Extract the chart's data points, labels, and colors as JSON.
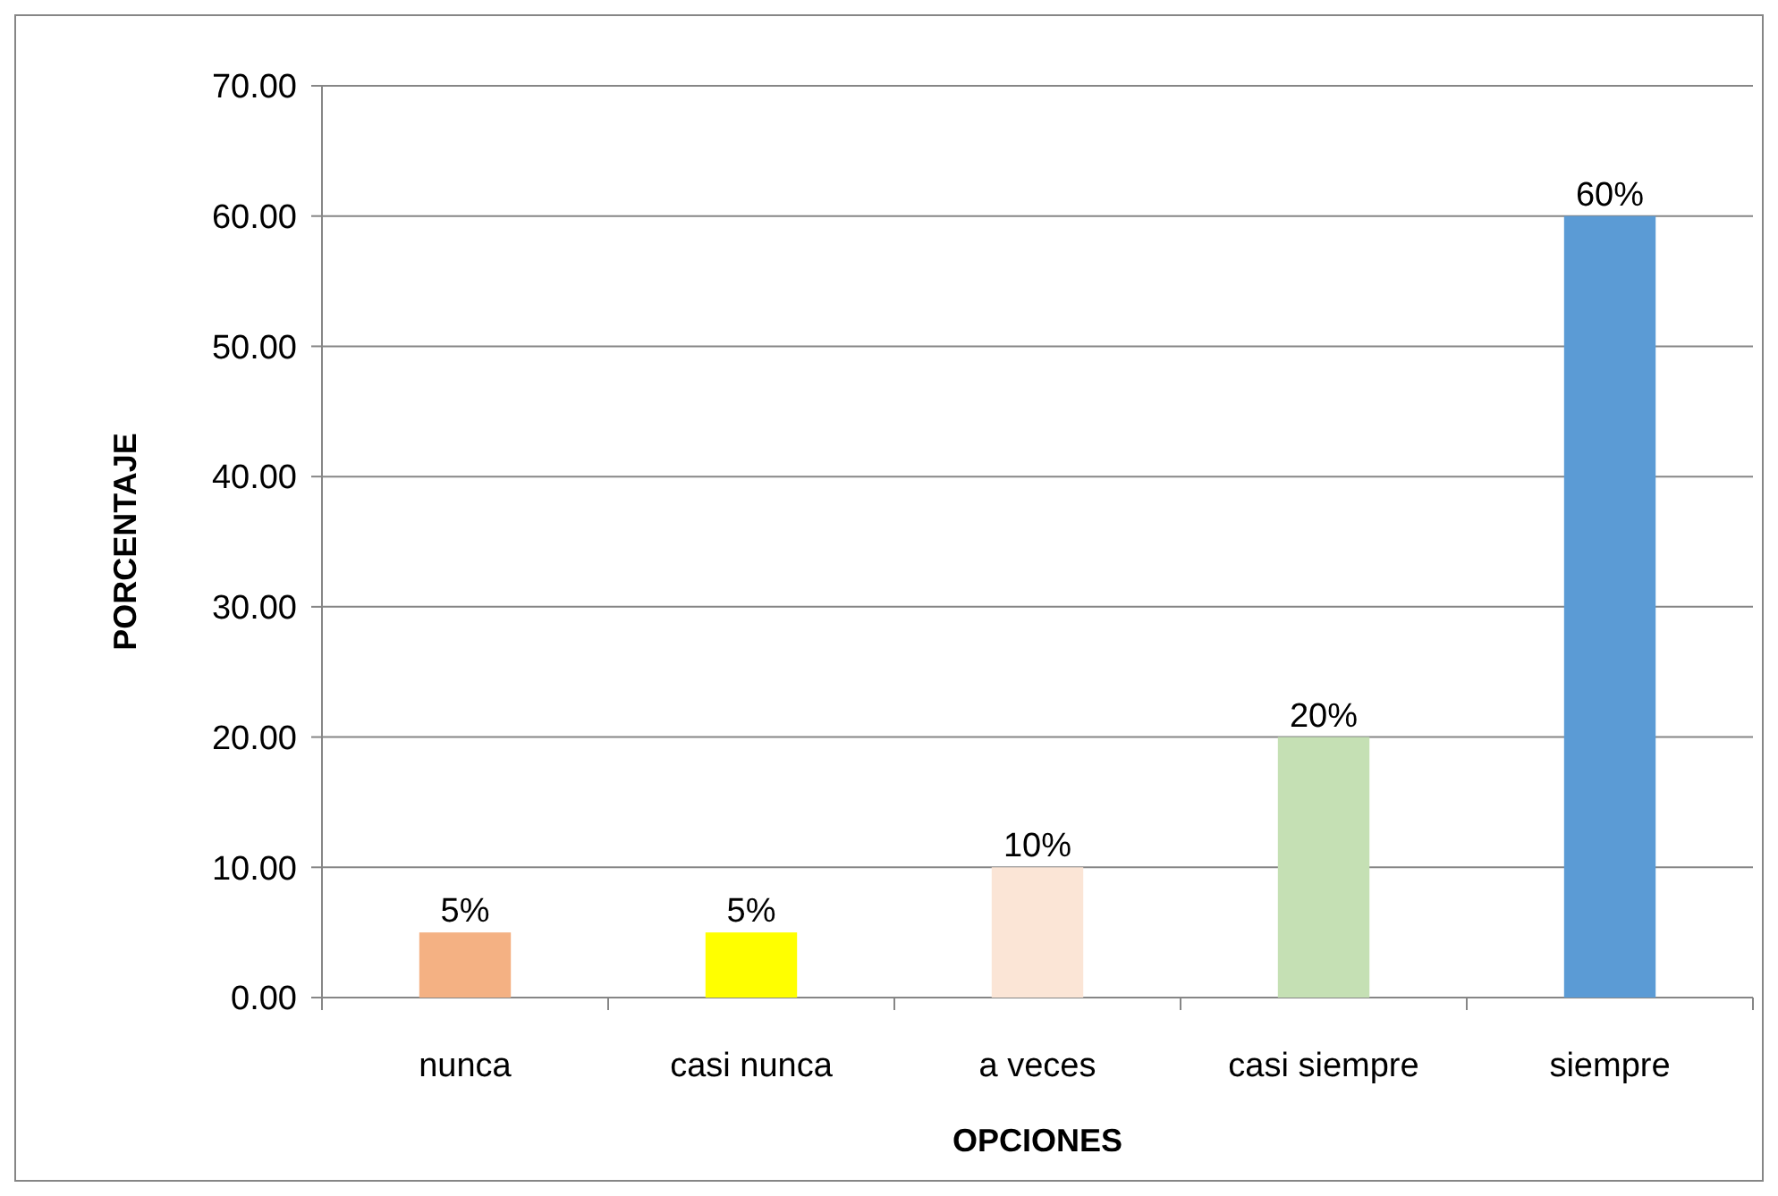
{
  "chart_data": {
    "type": "bar",
    "xlabel": "OPCIONES",
    "ylabel": "PORCENTAJE",
    "categories": [
      "nunca",
      "casi nunca",
      "a veces",
      "casi siempre",
      "siempre"
    ],
    "values": [
      5,
      5,
      10,
      20,
      60
    ],
    "colors": [
      "#f4b183",
      "#ffff00",
      "#fbe5d6",
      "#c5e0b4",
      "#5b9bd5"
    ],
    "value_labels": [
      "5%",
      "5%",
      "10%",
      "20%",
      "60%"
    ],
    "ylim": [
      0,
      70
    ],
    "yticks": [
      {
        "value": 0,
        "label": "0.00"
      },
      {
        "value": 10,
        "label": "10.00"
      },
      {
        "value": 20,
        "label": "20.00"
      },
      {
        "value": 30,
        "label": "30.00"
      },
      {
        "value": 40,
        "label": "40.00"
      },
      {
        "value": 50,
        "label": "50.00"
      },
      {
        "value": 60,
        "label": "60.00"
      },
      {
        "value": 70,
        "label": "70.00"
      }
    ],
    "grid": "y"
  }
}
